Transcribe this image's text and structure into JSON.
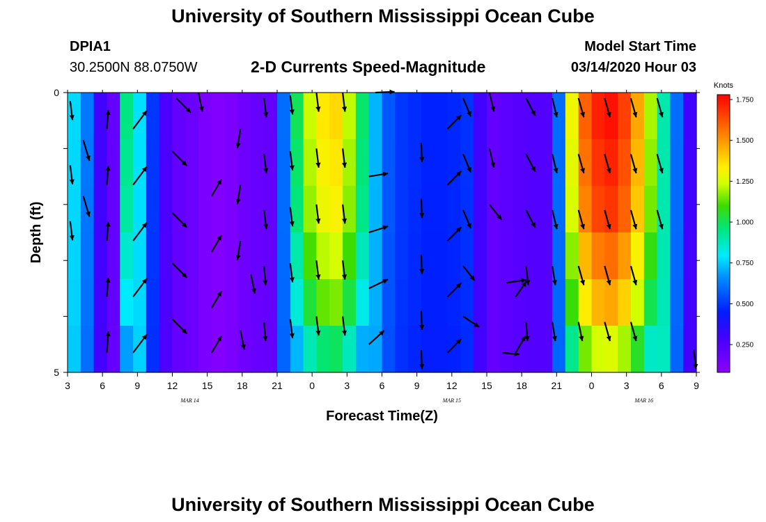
{
  "page": {
    "title_top": "University of Southern Mississippi Ocean Cube",
    "title_bottom": "University of Southern Mississippi Ocean Cube",
    "station_id": "DPIA1",
    "station_coords": "30.2500N 88.0750W",
    "plot_title": "2-D Currents Speed-Magnitude",
    "model_start_label": "Model Start Time",
    "model_start_value": "03/14/2020 Hour 03"
  },
  "chart_data": {
    "type": "heatmap",
    "title": "2-D Currents Speed-Magnitude",
    "xlabel": "Forecast Time(Z)",
    "ylabel": "Depth (ft)",
    "ylim": [
      0,
      5
    ],
    "y_ticks": [
      "0",
      "5"
    ],
    "x_ticks": [
      "3",
      "6",
      "9",
      "12",
      "15",
      "18",
      "21",
      "0",
      "3",
      "6",
      "9",
      "12",
      "15",
      "18",
      "21",
      "0",
      "3",
      "6",
      "9"
    ],
    "date_labels": [
      {
        "text": "MAR 14",
        "at_tick": 3.5
      },
      {
        "text": "MAR 15",
        "at_tick": 11
      },
      {
        "text": "MAR 16",
        "at_tick": 16.5
      }
    ],
    "colorbar": {
      "label": "Knots",
      "ticks": [
        "1.750",
        "1.500",
        "1.250",
        "1.000",
        "0.750",
        "0.500",
        "0.250"
      ],
      "min": 0.08,
      "max": 1.78
    },
    "speed_columns_knots": [
      0.77,
      0.62,
      0.3,
      0.2,
      0.95,
      0.78,
      0.5,
      0.27,
      0.2,
      0.18,
      0.13,
      0.11,
      0.13,
      0.17,
      0.19,
      0.2,
      0.6,
      1.0,
      1.23,
      1.35,
      1.38,
      1.22,
      0.98,
      0.72,
      0.56,
      0.5,
      0.48,
      0.46,
      0.46,
      0.47,
      0.49,
      0.3,
      0.2,
      0.22,
      0.24,
      0.25,
      0.25,
      0.6,
      1.3,
      1.6,
      1.72,
      1.75,
      1.66,
      1.47,
      1.2,
      0.9,
      0.6,
      0.3
    ],
    "depth_row_factors": [
      1.0,
      0.98,
      0.96,
      0.9,
      0.84,
      0.72
    ],
    "arrows": [
      {
        "t": 0.2,
        "z": 0.3,
        "dx": 0.3,
        "dy": 2.5
      },
      {
        "t": 0.2,
        "z": 2.6,
        "dx": 0.3,
        "dy": 2.5
      },
      {
        "t": 0.2,
        "z": 4.6,
        "dx": 0.3,
        "dy": 2.5
      },
      {
        "t": 1.2,
        "z": 1.7,
        "dx": 0.8,
        "dy": 2.7
      },
      {
        "t": 1.2,
        "z": 3.7,
        "dx": 0.8,
        "dy": 2.7
      },
      {
        "t": 3.0,
        "z": 1.3,
        "dx": 0.2,
        "dy": -2.5
      },
      {
        "t": 3.0,
        "z": 3.3,
        "dx": 0.2,
        "dy": -2.5
      },
      {
        "t": 3.0,
        "z": 5.3,
        "dx": 0.2,
        "dy": -2.5
      },
      {
        "t": 3.0,
        "z": 7.3,
        "dx": 0.2,
        "dy": -2.5
      },
      {
        "t": 3.0,
        "z": 9.3,
        "dx": 0.2,
        "dy": -2.8
      },
      {
        "t": 5.0,
        "z": 1.3,
        "dx": 1.8,
        "dy": -2.4
      },
      {
        "t": 5.0,
        "z": 3.3,
        "dx": 1.8,
        "dy": -2.4
      },
      {
        "t": 5.0,
        "z": 5.3,
        "dx": 1.8,
        "dy": -2.4
      },
      {
        "t": 5.0,
        "z": 7.3,
        "dx": 1.8,
        "dy": -2.4
      },
      {
        "t": 5.0,
        "z": 9.3,
        "dx": 1.8,
        "dy": -2.4
      },
      {
        "t": 8.3,
        "z": 0.2,
        "dx": 1.9,
        "dy": 1.9
      },
      {
        "t": 8.0,
        "z": 2.1,
        "dx": 1.9,
        "dy": 1.9
      },
      {
        "t": 8.0,
        "z": 4.3,
        "dx": 1.9,
        "dy": 1.9
      },
      {
        "t": 8.0,
        "z": 6.1,
        "dx": 1.9,
        "dy": 1.9
      },
      {
        "t": 8.0,
        "z": 8.1,
        "dx": 1.9,
        "dy": 1.9
      },
      {
        "t": 10.0,
        "z": 0.0,
        "dx": 0.5,
        "dy": 2.5
      },
      {
        "t": 11.0,
        "z": 3.7,
        "dx": 1.3,
        "dy": -2.2
      },
      {
        "t": 11.0,
        "z": 5.7,
        "dx": 1.3,
        "dy": -2.2
      },
      {
        "t": 11.0,
        "z": 7.7,
        "dx": 1.3,
        "dy": -2.2
      },
      {
        "t": 11.0,
        "z": 9.3,
        "dx": 1.3,
        "dy": -2.2
      },
      {
        "t": 13.2,
        "z": 1.3,
        "dx": -0.4,
        "dy": 2.5
      },
      {
        "t": 13.2,
        "z": 3.3,
        "dx": -0.4,
        "dy": 2.5
      },
      {
        "t": 13.2,
        "z": 5.3,
        "dx": -0.4,
        "dy": 2.5
      },
      {
        "t": 14.0,
        "z": 6.5,
        "dx": 0.5,
        "dy": 2.5
      },
      {
        "t": 13.2,
        "z": 8.5,
        "dx": 0.5,
        "dy": 2.5
      },
      {
        "t": 15.0,
        "z": 0.2,
        "dx": 0.3,
        "dy": 2.5
      },
      {
        "t": 15.0,
        "z": 2.2,
        "dx": 0.3,
        "dy": 2.5
      },
      {
        "t": 15.0,
        "z": 4.2,
        "dx": 0.3,
        "dy": 2.5
      },
      {
        "t": 15.0,
        "z": 6.2,
        "dx": 0.2,
        "dy": 2.5
      },
      {
        "t": 15.0,
        "z": 8.2,
        "dx": 0.2,
        "dy": 2.5
      },
      {
        "t": 17.0,
        "z": 0.1,
        "dx": 0.3,
        "dy": 2.5
      },
      {
        "t": 17.0,
        "z": 2.1,
        "dx": 0.3,
        "dy": 2.5
      },
      {
        "t": 17.0,
        "z": 4.1,
        "dx": 0.3,
        "dy": 2.5
      },
      {
        "t": 17.0,
        "z": 6.1,
        "dx": 0.3,
        "dy": 2.5
      },
      {
        "t": 17.0,
        "z": 8.1,
        "dx": 0.3,
        "dy": 2.5
      },
      {
        "t": 19.0,
        "z": 0.0,
        "dx": 0.3,
        "dy": 2.5
      },
      {
        "t": 19.0,
        "z": 2.0,
        "dx": 0.3,
        "dy": 2.5
      },
      {
        "t": 19.0,
        "z": 4.0,
        "dx": 0.3,
        "dy": 2.5
      },
      {
        "t": 19.0,
        "z": 6.0,
        "dx": 0.3,
        "dy": 2.5
      },
      {
        "t": 19.0,
        "z": 8.0,
        "dx": 0.3,
        "dy": 2.5
      },
      {
        "t": 21.0,
        "z": 0.0,
        "dx": 0.3,
        "dy": 2.5
      },
      {
        "t": 21.0,
        "z": 2.0,
        "dx": 0.3,
        "dy": 2.5
      },
      {
        "t": 21.0,
        "z": 4.0,
        "dx": 0.3,
        "dy": 2.5
      },
      {
        "t": 21.0,
        "z": 6.0,
        "dx": 0.3,
        "dy": 2.5
      },
      {
        "t": 21.0,
        "z": 8.0,
        "dx": 0.3,
        "dy": 2.5
      },
      {
        "t": 23.5,
        "z": 0.0,
        "dx": 2.5,
        "dy": -0.1
      },
      {
        "t": 23.0,
        "z": 3.0,
        "dx": 2.5,
        "dy": -0.4
      },
      {
        "t": 23.0,
        "z": 5.0,
        "dx": 2.5,
        "dy": -0.8
      },
      {
        "t": 23.0,
        "z": 7.0,
        "dx": 2.5,
        "dy": -1.2
      },
      {
        "t": 23.0,
        "z": 9.0,
        "dx": 2.0,
        "dy": -1.8
      },
      {
        "t": 27.0,
        "z": 1.8,
        "dx": 0.1,
        "dy": 2.5
      },
      {
        "t": 27.0,
        "z": 3.8,
        "dx": 0.1,
        "dy": 2.5
      },
      {
        "t": 27.0,
        "z": 5.8,
        "dx": 0.1,
        "dy": 2.5
      },
      {
        "t": 27.0,
        "z": 7.8,
        "dx": 0.1,
        "dy": 2.5
      },
      {
        "t": 27.0,
        "z": 9.2,
        "dx": 0.1,
        "dy": 2.5
      },
      {
        "t": 29.0,
        "z": 1.3,
        "dx": 1.8,
        "dy": -1.8
      },
      {
        "t": 29.0,
        "z": 3.3,
        "dx": 1.8,
        "dy": -1.8
      },
      {
        "t": 29.0,
        "z": 5.3,
        "dx": 1.8,
        "dy": -1.8
      },
      {
        "t": 29.0,
        "z": 7.3,
        "dx": 1.8,
        "dy": -1.8
      },
      {
        "t": 29.0,
        "z": 9.3,
        "dx": 1.8,
        "dy": -1.8
      },
      {
        "t": 30.2,
        "z": 0.2,
        "dx": 1.0,
        "dy": 2.4
      },
      {
        "t": 30.2,
        "z": 2.2,
        "dx": 1.0,
        "dy": 2.4
      },
      {
        "t": 30.2,
        "z": 4.2,
        "dx": 1.0,
        "dy": 2.4
      },
      {
        "t": 30.2,
        "z": 6.2,
        "dx": 1.5,
        "dy": 1.9
      },
      {
        "t": 30.2,
        "z": 8.0,
        "dx": 2.1,
        "dy": 1.4
      },
      {
        "t": 32.2,
        "z": 0.0,
        "dx": 0.6,
        "dy": 2.5
      },
      {
        "t": 32.2,
        "z": 2.0,
        "dx": 0.6,
        "dy": 2.5
      },
      {
        "t": 32.2,
        "z": 4.0,
        "dx": 1.6,
        "dy": 2.0
      },
      {
        "t": 33.5,
        "z": 6.8,
        "dx": 2.6,
        "dy": -0.4
      },
      {
        "t": 33.2,
        "z": 9.3,
        "dx": 2.2,
        "dy": 0.2
      },
      {
        "t": 34.2,
        "z": 7.3,
        "dx": 1.4,
        "dy": -2.0
      },
      {
        "t": 34.2,
        "z": 9.3,
        "dx": 1.3,
        "dy": -2.2
      },
      {
        "t": 35.0,
        "z": 0.2,
        "dx": 1.2,
        "dy": 2.3
      },
      {
        "t": 35.0,
        "z": 2.2,
        "dx": 1.2,
        "dy": 2.3
      },
      {
        "t": 35.0,
        "z": 4.2,
        "dx": 1.2,
        "dy": 2.3
      },
      {
        "t": 35.0,
        "z": 6.2,
        "dx": 0.3,
        "dy": 2.5
      },
      {
        "t": 35.0,
        "z": 8.2,
        "dx": 0.2,
        "dy": 2.5
      },
      {
        "t": 37.0,
        "z": 0.2,
        "dx": 0.6,
        "dy": 2.5
      },
      {
        "t": 37.0,
        "z": 2.2,
        "dx": 0.6,
        "dy": 2.5
      },
      {
        "t": 37.0,
        "z": 4.2,
        "dx": 0.6,
        "dy": 2.5
      },
      {
        "t": 37.0,
        "z": 6.2,
        "dx": 0.4,
        "dy": 2.5
      },
      {
        "t": 37.0,
        "z": 8.2,
        "dx": 0.4,
        "dy": 2.5
      },
      {
        "t": 39.0,
        "z": 0.2,
        "dx": 0.7,
        "dy": 2.5
      },
      {
        "t": 39.0,
        "z": 2.2,
        "dx": 0.7,
        "dy": 2.5
      },
      {
        "t": 39.0,
        "z": 4.2,
        "dx": 0.7,
        "dy": 2.5
      },
      {
        "t": 39.0,
        "z": 6.2,
        "dx": 0.7,
        "dy": 2.5
      },
      {
        "t": 39.0,
        "z": 8.2,
        "dx": 0.5,
        "dy": 2.5
      },
      {
        "t": 41.0,
        "z": 0.2,
        "dx": 0.7,
        "dy": 2.5
      },
      {
        "t": 41.0,
        "z": 2.2,
        "dx": 0.7,
        "dy": 2.5
      },
      {
        "t": 41.0,
        "z": 4.2,
        "dx": 0.7,
        "dy": 2.5
      },
      {
        "t": 41.0,
        "z": 6.2,
        "dx": 0.7,
        "dy": 2.5
      },
      {
        "t": 41.0,
        "z": 8.2,
        "dx": 0.7,
        "dy": 2.5
      },
      {
        "t": 43.0,
        "z": 0.2,
        "dx": 0.7,
        "dy": 2.5
      },
      {
        "t": 43.0,
        "z": 2.2,
        "dx": 0.7,
        "dy": 2.5
      },
      {
        "t": 43.0,
        "z": 4.2,
        "dx": 0.7,
        "dy": 2.5
      },
      {
        "t": 43.0,
        "z": 6.2,
        "dx": 0.7,
        "dy": 2.5
      },
      {
        "t": 43.0,
        "z": 8.2,
        "dx": 0.7,
        "dy": 2.5
      },
      {
        "t": 45.0,
        "z": 0.2,
        "dx": 0.7,
        "dy": 2.5
      },
      {
        "t": 45.0,
        "z": 2.2,
        "dx": 0.7,
        "dy": 2.5
      },
      {
        "t": 45.0,
        "z": 4.2,
        "dx": 0.7,
        "dy": 2.5
      },
      {
        "t": 47.8,
        "z": 9.2,
        "dx": 0.3,
        "dy": 2.5
      }
    ]
  }
}
